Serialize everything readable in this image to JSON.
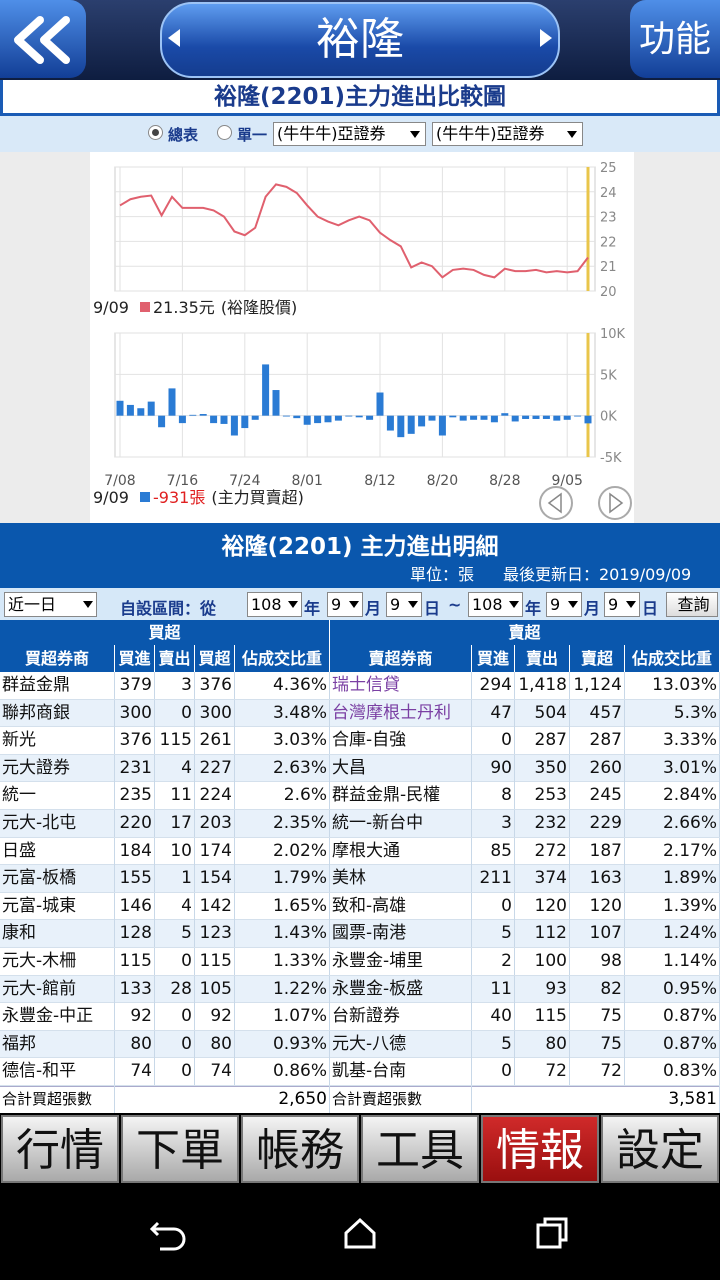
{
  "header": {
    "title": "裕隆",
    "function": "功能"
  },
  "chart_section": {
    "title": "裕隆(2201)主力進出比較圖",
    "radio_all": "總表",
    "radio_single": "單一",
    "select_1": "(牛牛牛)亞證券",
    "select_2": "(牛牛牛)亞證券"
  },
  "chart_data": [
    {
      "type": "line",
      "color": "#e0606e",
      "ylim": [
        20,
        25
      ],
      "yticks": [
        20,
        21,
        22,
        23,
        24,
        25
      ],
      "grid": true,
      "values": [
        23.45,
        23.7,
        23.8,
        23.85,
        23.05,
        23.8,
        23.35,
        23.35,
        23.35,
        23.25,
        23.0,
        22.4,
        22.25,
        22.55,
        23.8,
        24.3,
        24.2,
        23.95,
        23.45,
        23.0,
        22.8,
        22.65,
        22.85,
        23.0,
        22.85,
        22.35,
        22.05,
        21.8,
        20.95,
        21.15,
        21.0,
        20.55,
        20.85,
        20.9,
        20.85,
        20.65,
        20.55,
        20.9,
        20.8,
        20.8,
        20.85,
        20.75,
        20.8,
        20.75,
        20.8,
        21.35
      ],
      "legend": {
        "date": "9/09",
        "value_label": "21.35元",
        "name": "(裕隆股價)"
      }
    },
    {
      "type": "bar",
      "color": "#2a7bd4",
      "ylim": [
        -5000,
        10000
      ],
      "yticks": [
        {
          "value": 10000,
          "label": "10K"
        },
        {
          "value": 5000,
          "label": "5K"
        },
        {
          "value": 0,
          "label": "0K"
        },
        {
          "value": -5000,
          "label": "-5K"
        }
      ],
      "grid": true,
      "categories": [
        "7/08",
        null,
        null,
        null,
        null,
        null,
        "7/16",
        null,
        null,
        null,
        null,
        null,
        "7/24",
        null,
        null,
        null,
        null,
        null,
        "8/01",
        null,
        null,
        null,
        null,
        null,
        null,
        "8/12",
        null,
        null,
        null,
        null,
        null,
        "8/20",
        null,
        null,
        null,
        null,
        null,
        "8/28",
        null,
        null,
        null,
        null,
        null,
        "9/05",
        null,
        null
      ],
      "values": [
        1800,
        1300,
        900,
        1700,
        -1400,
        3300,
        -900,
        100,
        200,
        -900,
        -1000,
        -2400,
        -1500,
        -500,
        6200,
        3100,
        -100,
        -300,
        -1100,
        -900,
        -800,
        -600,
        -100,
        -200,
        -500,
        2800,
        -1800,
        -2600,
        -2200,
        -1300,
        -600,
        -2400,
        -200,
        -600,
        -500,
        -500,
        -800,
        300,
        -700,
        -400,
        -400,
        -400,
        -600,
        -500,
        -100,
        -931
      ],
      "legend": {
        "date": "9/09",
        "value_label": "-931張",
        "name": "(主力買賣超)"
      }
    }
  ],
  "detail": {
    "title": "裕隆(2201) 主力進出明細",
    "unit": "單位：張",
    "updated": "最後更新日：2019/09/09",
    "filter": {
      "period": "近一日",
      "range_label": "自設區間：從",
      "from_year": "108",
      "year_1": "年",
      "from_month": "9",
      "month_1": "月",
      "from_day": "9",
      "day_1": "日",
      "tilde": "~",
      "to_year": "108",
      "year_2": "年",
      "to_month": "9",
      "month_2": "月",
      "to_day": "9",
      "day_2": "日",
      "query": "查詢"
    },
    "table": {
      "groups": [
        "買超",
        "賣超"
      ],
      "headers": [
        "買超券商",
        "買進",
        "賣出",
        "買超",
        "佔成交比重",
        "賣超券商",
        "買進",
        "賣出",
        "賣超",
        "佔成交比重"
      ],
      "rows": [
        [
          "群益金鼎",
          "379",
          "3",
          "376",
          "4.36%",
          "瑞士信貸",
          "294",
          "1,418",
          "1,124",
          "13.03%"
        ],
        [
          "聯邦商銀",
          "300",
          "0",
          "300",
          "3.48%",
          "台灣摩根士丹利",
          "47",
          "504",
          "457",
          "5.3%"
        ],
        [
          "新光",
          "376",
          "115",
          "261",
          "3.03%",
          "合庫-自強",
          "0",
          "287",
          "287",
          "3.33%"
        ],
        [
          "元大證券",
          "231",
          "4",
          "227",
          "2.63%",
          "大昌",
          "90",
          "350",
          "260",
          "3.01%"
        ],
        [
          "統一",
          "235",
          "11",
          "224",
          "2.6%",
          "群益金鼎-民權",
          "8",
          "253",
          "245",
          "2.84%"
        ],
        [
          "元大-北屯",
          "220",
          "17",
          "203",
          "2.35%",
          "統一-新台中",
          "3",
          "232",
          "229",
          "2.66%"
        ],
        [
          "日盛",
          "184",
          "10",
          "174",
          "2.02%",
          "摩根大通",
          "85",
          "272",
          "187",
          "2.17%"
        ],
        [
          "元富-板橋",
          "155",
          "1",
          "154",
          "1.79%",
          "美林",
          "211",
          "374",
          "163",
          "1.89%"
        ],
        [
          "元富-城東",
          "146",
          "4",
          "142",
          "1.65%",
          "致和-高雄",
          "0",
          "120",
          "120",
          "1.39%"
        ],
        [
          "康和",
          "128",
          "5",
          "123",
          "1.43%",
          "國票-南港",
          "5",
          "112",
          "107",
          "1.24%"
        ],
        [
          "元大-木柵",
          "115",
          "0",
          "115",
          "1.33%",
          "永豐金-埔里",
          "2",
          "100",
          "98",
          "1.14%"
        ],
        [
          "元大-館前",
          "133",
          "28",
          "105",
          "1.22%",
          "永豐金-板盛",
          "11",
          "93",
          "82",
          "0.95%"
        ],
        [
          "永豐金-中正",
          "92",
          "0",
          "92",
          "1.07%",
          "台新證券",
          "40",
          "115",
          "75",
          "0.87%"
        ],
        [
          "福邦",
          "80",
          "0",
          "80",
          "0.93%",
          "元大-八德",
          "5",
          "80",
          "75",
          "0.87%"
        ],
        [
          "德信-和平",
          "74",
          "0",
          "74",
          "0.86%",
          "凱基-台南",
          "0",
          "72",
          "72",
          "0.83%"
        ]
      ],
      "totals": [
        "合計買超張數",
        "2,650",
        "合計賣超張數",
        "3,581"
      ]
    }
  },
  "tabs": [
    "行情",
    "下單",
    "帳務",
    "工具",
    "情報",
    "設定"
  ]
}
